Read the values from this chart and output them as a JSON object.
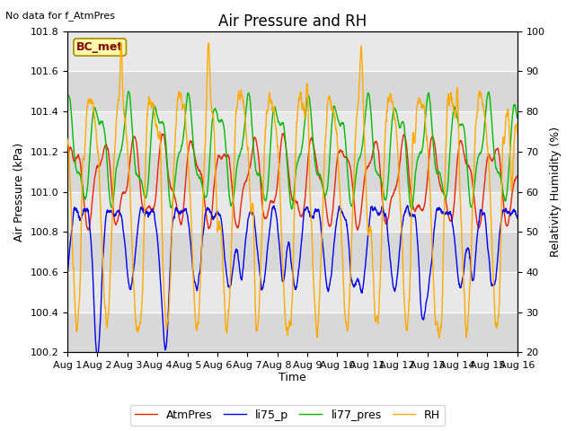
{
  "title": "Air Pressure and RH",
  "note": "No data for f_AtmPres",
  "xlabel": "Time",
  "ylabel_left": "Air Pressure (kPa)",
  "ylabel_right": "Relativity Humidity (%)",
  "ylim_left": [
    100.2,
    101.8
  ],
  "ylim_right": [
    20,
    100
  ],
  "xlim": [
    0,
    15
  ],
  "xtick_labels": [
    "Aug 1",
    "Aug 2",
    "Aug 3",
    "Aug 4",
    "Aug 5",
    "Aug 6",
    "Aug 7",
    "Aug 8",
    "Aug 9",
    "Aug 10",
    "Aug 11",
    "Aug 12",
    "Aug 13",
    "Aug 14",
    "Aug 15",
    "Aug 16"
  ],
  "legend_entries": [
    "AtmPres",
    "li75_p",
    "li77_pres",
    "RH"
  ],
  "legend_colors": [
    "#ee2200",
    "#0000ee",
    "#00bb00",
    "#ffaa00"
  ],
  "bc_met_label": "BC_met",
  "background_color": "#e0e0e0",
  "figure_bg": "#ffffff",
  "line_width": 1.0,
  "title_fontsize": 12,
  "axis_fontsize": 9,
  "tick_fontsize": 8,
  "note_fontsize": 8,
  "legend_fontsize": 9,
  "yticks_left": [
    100.2,
    100.4,
    100.6,
    100.8,
    101.0,
    101.2,
    101.4,
    101.6,
    101.8
  ],
  "yticks_right": [
    20,
    30,
    40,
    50,
    60,
    70,
    80,
    90,
    100
  ],
  "band_colors": [
    "#d8d8d8",
    "#e8e8e8"
  ]
}
